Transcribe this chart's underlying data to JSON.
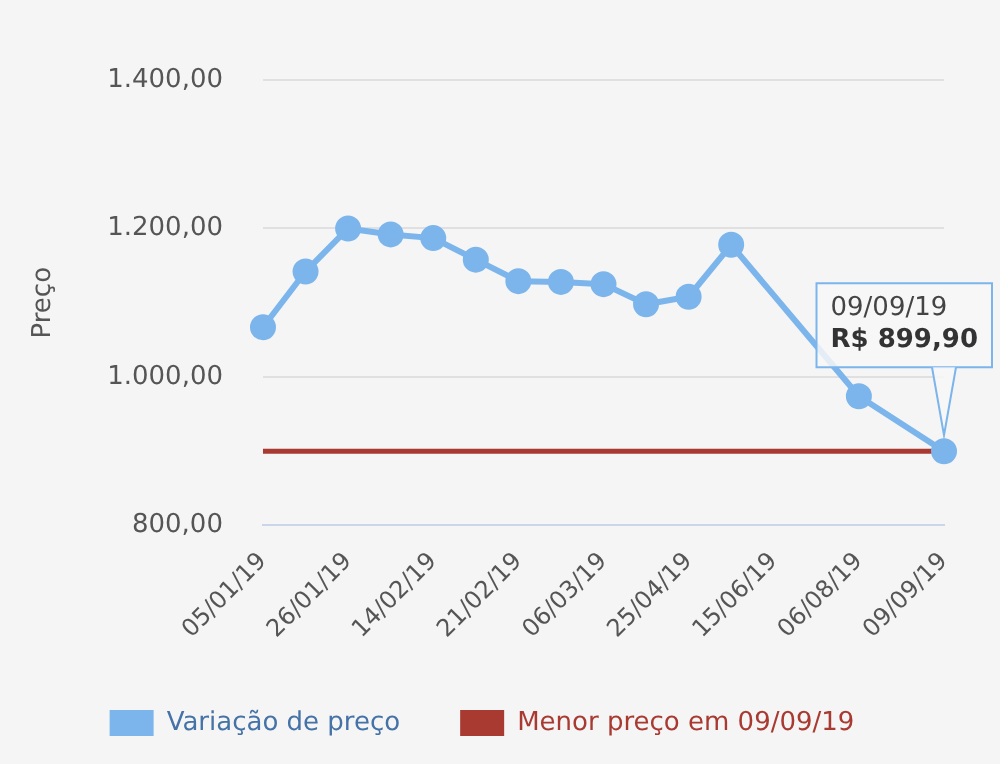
{
  "chart_data": {
    "type": "line",
    "ylabel": "Preço",
    "categories": [
      "05/01/19",
      null,
      "26/01/19",
      null,
      "14/02/19",
      null,
      "21/02/19",
      null,
      "06/03/19",
      null,
      "25/04/19",
      null,
      "15/06/19",
      null,
      "06/08/19",
      null,
      "09/09/19"
    ],
    "series": [
      {
        "name": "Variação de preço",
        "color": "#7cb5ec",
        "values": [
          1067,
          1142,
          1200,
          1192,
          1187,
          1158,
          1129,
          1128,
          1125,
          1098,
          1108,
          1178,
          null,
          null,
          974,
          null,
          899.9
        ]
      }
    ],
    "ylim": [
      800,
      1400
    ],
    "yticks": [
      {
        "value": 800,
        "label": "800,00"
      },
      {
        "value": 1000,
        "label": "1.000,00"
      },
      {
        "value": 1200,
        "label": "1.200,00"
      },
      {
        "value": 1400,
        "label": "1.400,00"
      }
    ],
    "ref_lines": [
      {
        "axis": "y",
        "value": 899.9,
        "label": "Menor preço em 09/09/19",
        "color": "#a83a32"
      }
    ],
    "annotations": [
      {
        "text": "09/09/19\nR$ 899,90",
        "x": "09/09/19",
        "y": 899.9
      }
    ],
    "grid": "y",
    "legend": "bottom",
    "marker": "circle",
    "line_style": "solid"
  }
}
